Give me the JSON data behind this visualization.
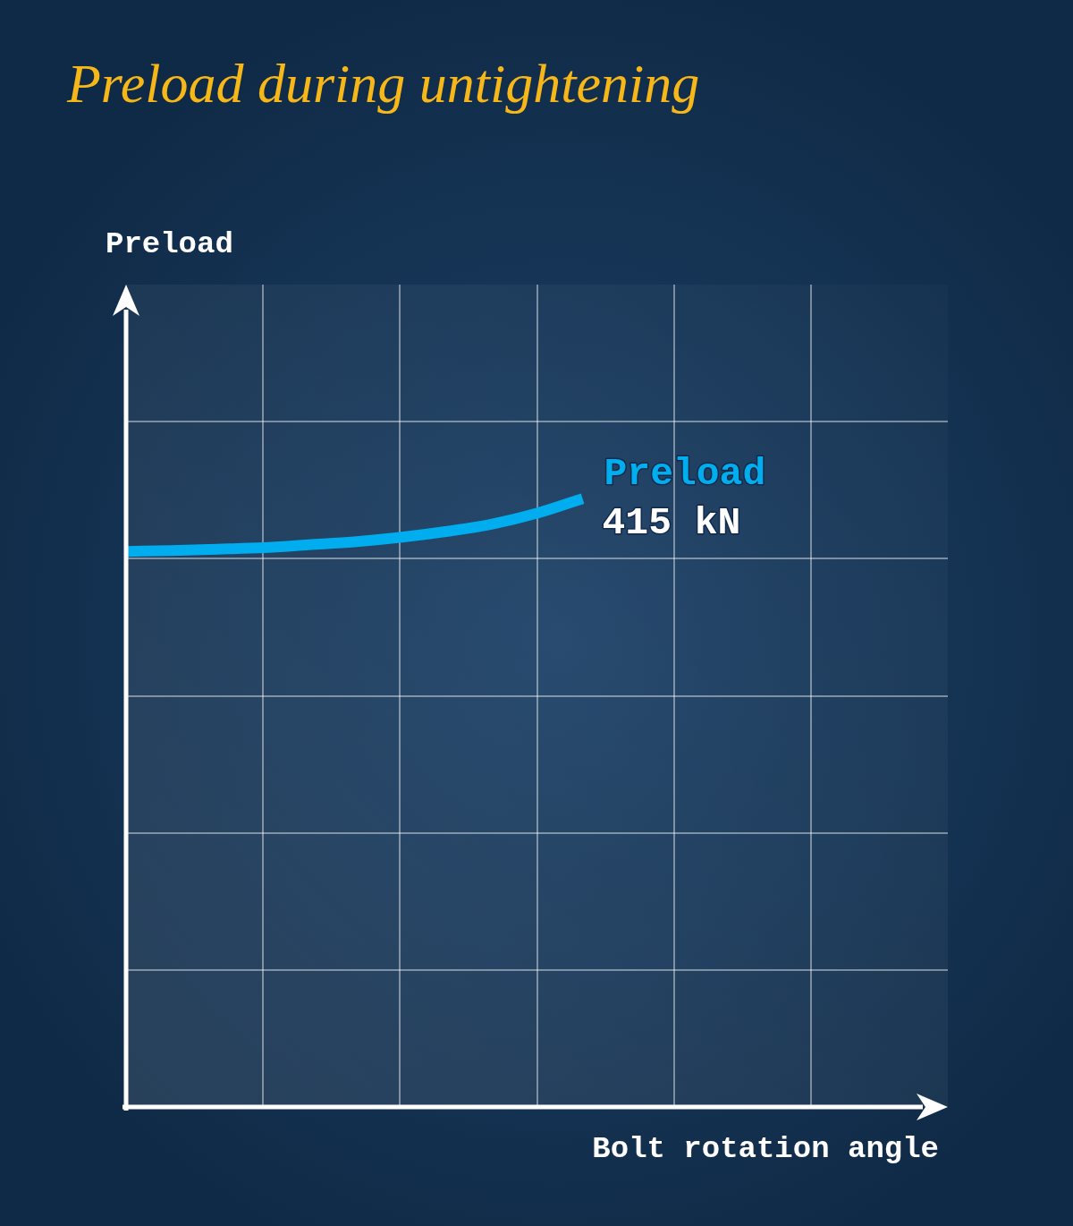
{
  "chart_data": {
    "type": "line",
    "title": "Preload during untightening",
    "xlabel": "Bolt rotation angle",
    "ylabel": "Preload",
    "categories": [
      null,
      null,
      null,
      null,
      null,
      null,
      null,
      null,
      null,
      null,
      null,
      null,
      null,
      null,
      null,
      null,
      null,
      null,
      null
    ],
    "series": [
      {
        "name": "Preload",
        "color": "#00aeef",
        "values": [
          379,
          379.5,
          380.5,
          381.5,
          383.5,
          385.5,
          388.5,
          392.5,
          397.5,
          405,
          415,
          null,
          null,
          null,
          null,
          null,
          null,
          null,
          null
        ],
        "value_labels": [
          null,
          null,
          null,
          null,
          null,
          null,
          null,
          null,
          null,
          null,
          "415 kN",
          null,
          null,
          null,
          null,
          null,
          null,
          null,
          null
        ]
      }
    ],
    "ylim": [
      0,
      561
    ],
    "yticks": [
      {
        "value": 93.5,
        "label": null
      },
      {
        "value": 187,
        "label": null
      },
      {
        "value": 280.5,
        "label": null
      },
      {
        "value": 374,
        "label": null
      },
      {
        "value": 467.5,
        "label": null
      }
    ],
    "grid": true,
    "marker": "none",
    "line_style": "solid"
  }
}
